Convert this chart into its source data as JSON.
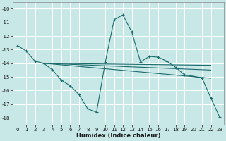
{
  "xlabel": "Humidex (Indice chaleur)",
  "bg_color": "#c8e8e8",
  "grid_color": "#ffffff",
  "line_color": "#1a6b6b",
  "xlim": [
    -0.5,
    23.5
  ],
  "ylim": [
    -18.5,
    -9.5
  ],
  "xticks": [
    0,
    1,
    2,
    3,
    4,
    5,
    6,
    7,
    8,
    9,
    10,
    11,
    12,
    13,
    14,
    15,
    16,
    17,
    18,
    19,
    20,
    21,
    22,
    23
  ],
  "yticks": [
    -10,
    -11,
    -12,
    -13,
    -14,
    -15,
    -16,
    -17,
    -18
  ],
  "main_x": [
    0,
    1,
    2,
    3,
    4,
    5,
    6,
    7,
    8,
    9,
    10,
    11,
    12,
    13,
    14,
    15,
    16,
    17,
    18,
    19,
    20,
    21,
    22,
    23
  ],
  "main_y": [
    -12.7,
    -13.1,
    -13.85,
    -14.0,
    -14.5,
    -15.25,
    -15.65,
    -16.3,
    -17.35,
    -17.6,
    -13.9,
    -10.8,
    -10.45,
    -11.7,
    -13.9,
    -13.5,
    -13.55,
    -13.85,
    -14.3,
    -14.85,
    -14.95,
    -15.1,
    -16.55,
    -17.95
  ],
  "diag_lines": [
    {
      "x": [
        3,
        22
      ],
      "y": [
        -14.0,
        -14.15
      ]
    },
    {
      "x": [
        3,
        22
      ],
      "y": [
        -14.0,
        -14.5
      ]
    },
    {
      "x": [
        3,
        22
      ],
      "y": [
        -14.0,
        -15.1
      ]
    }
  ],
  "tick_fontsize": 5.0,
  "xlabel_fontsize": 6.0
}
